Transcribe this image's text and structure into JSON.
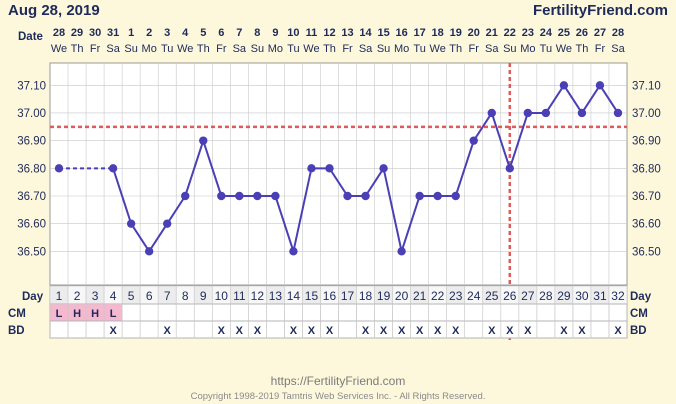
{
  "header": {
    "date": "Aug 28, 2019",
    "brand": "FertilityFriend.com",
    "date_row_label": "Date"
  },
  "footer": {
    "url": "https://FertilityFriend.com",
    "copyright": "Copyright 1998-2019 Tamtris Web Services Inc. - All Rights Reserved."
  },
  "chart_data": {
    "type": "line",
    "dates": [
      "28",
      "29",
      "30",
      "31",
      "1",
      "2",
      "3",
      "4",
      "5",
      "6",
      "7",
      "8",
      "9",
      "10",
      "11",
      "12",
      "13",
      "14",
      "15",
      "16",
      "17",
      "18",
      "19",
      "20",
      "21",
      "22",
      "23",
      "24",
      "25",
      "26",
      "27",
      "28"
    ],
    "weekdays": [
      "We",
      "Th",
      "Fr",
      "Sa",
      "Su",
      "Mo",
      "Tu",
      "We",
      "Th",
      "Fr",
      "Sa",
      "Su",
      "Mo",
      "Tu",
      "We",
      "Th",
      "Fr",
      "Sa",
      "Su",
      "Mo",
      "Tu",
      "We",
      "Th",
      "Fr",
      "Sa",
      "Su",
      "Mo",
      "Tu",
      "We",
      "Th",
      "Fr",
      "Sa"
    ],
    "day_row_label": "Day",
    "days": [
      "1",
      "2",
      "3",
      "4",
      "5",
      "6",
      "7",
      "8",
      "9",
      "10",
      "11",
      "12",
      "13",
      "14",
      "15",
      "16",
      "17",
      "18",
      "19",
      "20",
      "21",
      "22",
      "23",
      "24",
      "25",
      "26",
      "27",
      "28",
      "29",
      "30",
      "31",
      "32"
    ],
    "temperatures": [
      36.8,
      null,
      null,
      36.8,
      36.6,
      36.5,
      36.6,
      36.7,
      36.9,
      36.7,
      36.7,
      36.7,
      36.7,
      36.5,
      36.8,
      36.8,
      36.7,
      36.7,
      36.8,
      36.5,
      36.7,
      36.7,
      36.7,
      36.9,
      37.0,
      36.8,
      37.0,
      37.0,
      37.1,
      37.0,
      37.1,
      37.0
    ],
    "ylim": [
      36.4,
      37.15
    ],
    "yticks": [
      "37.10",
      "37.00",
      "36.90",
      "36.80",
      "36.70",
      "36.60",
      "36.50"
    ],
    "coverline": 36.95,
    "ovulation_day": 26,
    "cm_label": "CM",
    "cm": [
      "L",
      "H",
      "H",
      "L",
      "",
      "",
      "",
      "",
      "",
      "",
      "",
      "",
      "",
      "",
      "",
      "",
      "",
      "",
      "",
      "",
      "",
      "",
      "",
      "",
      "",
      "",
      "",
      "",
      "",
      "",
      "",
      ""
    ],
    "bd_label": "BD",
    "bd": [
      "",
      "",
      "",
      "X",
      "",
      "",
      "X",
      "",
      "",
      "X",
      "X",
      "X",
      "",
      "X",
      "X",
      "X",
      "",
      "X",
      "X",
      "X",
      "X",
      "X",
      "X",
      "",
      "X",
      "X",
      "X",
      "",
      "X",
      "X",
      "",
      "X"
    ],
    "colors": {
      "line": "#4a3fb5",
      "coverline": "#e05a5a",
      "grid": "#c8c8c8",
      "cm_fill": "#f4b8cf",
      "background": "#fdf8dc"
    }
  }
}
